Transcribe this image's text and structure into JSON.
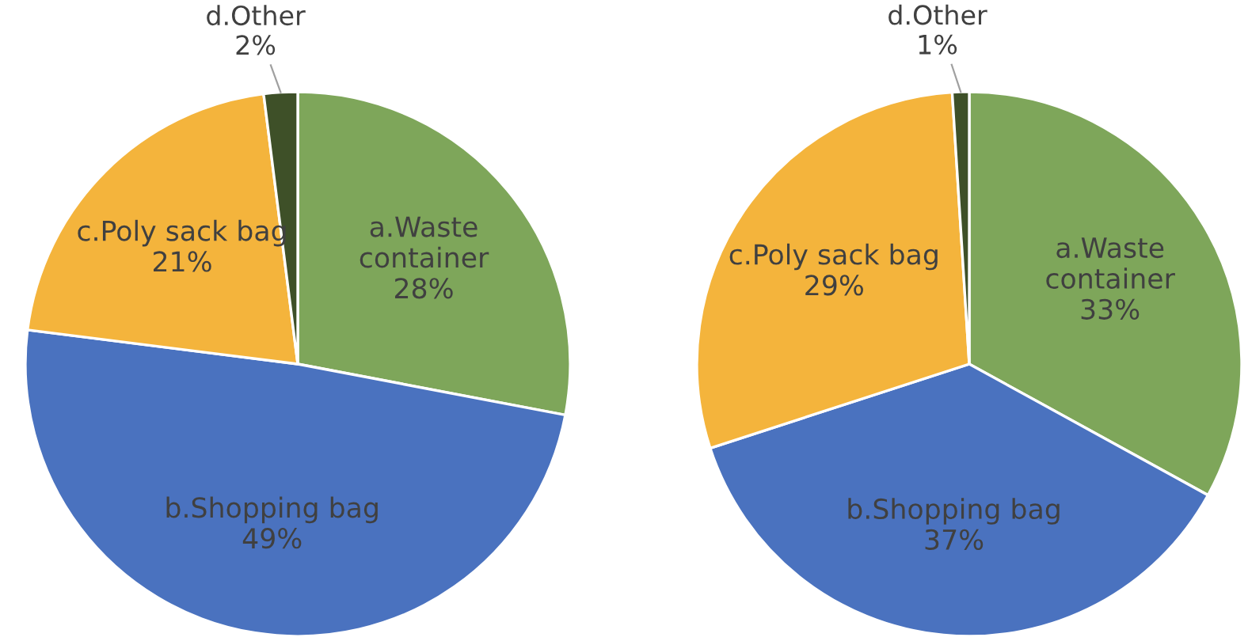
{
  "chart_data": [
    {
      "type": "pie",
      "categories": [
        "a.Waste\ncontainer",
        "b.Shopping bag",
        "c.Poly sack bag",
        "d.Other"
      ],
      "values": [
        28,
        49,
        21,
        2
      ],
      "value_labels": [
        "28%",
        "49%",
        "21%",
        "2%"
      ],
      "colors": [
        "#7ea65a",
        "#4a72bf",
        "#f4b43c",
        "#3e5028"
      ]
    },
    {
      "type": "pie",
      "categories": [
        "a.Waste\ncontainer",
        "b.Shopping bag",
        "c.Poly sack bag",
        "d.Other"
      ],
      "values": [
        33,
        37,
        29,
        1
      ],
      "value_labels": [
        "33%",
        "37%",
        "29%",
        "1%"
      ],
      "colors": [
        "#7ea65a",
        "#4a72bf",
        "#f4b43c",
        "#3e5028"
      ]
    }
  ]
}
